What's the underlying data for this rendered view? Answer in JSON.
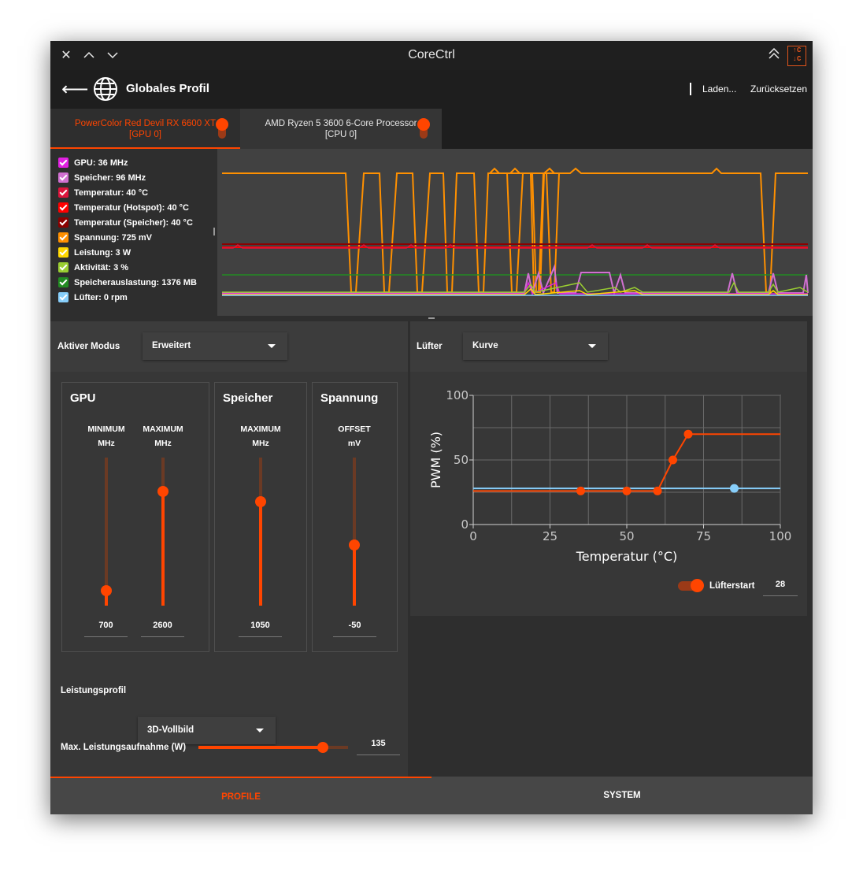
{
  "window": {
    "title": "CoreCtrl"
  },
  "header": {
    "profile_name": "Globales Profil",
    "load_label": "Laden...",
    "reset_label": "Zurücksetzen"
  },
  "device_tabs": [
    {
      "line1": "PowerColor Red Devil RX 6600 XT",
      "line2": "[GPU 0]",
      "active": true
    },
    {
      "line1": "AMD Ryzen 5 3600 6-Core Processor",
      "line2": "[CPU 0]",
      "active": false
    }
  ],
  "sensors": [
    {
      "label": "GPU: 36 MHz",
      "color": "#e020e0"
    },
    {
      "label": "Speicher: 96 MHz",
      "color": "#d070d0"
    },
    {
      "label": "Temperatur: 40 °C",
      "color": "#dc143c"
    },
    {
      "label": "Temperatur (Hotspot): 40 °C",
      "color": "#ff0000"
    },
    {
      "label": "Temperatur (Speicher): 40 °C",
      "color": "#8b0000"
    },
    {
      "label": "Spannung: 725 mV",
      "color": "#ff9000"
    },
    {
      "label": "Leistung: 3 W",
      "color": "#ffd700"
    },
    {
      "label": "Aktivität: 3 %",
      "color": "#9acd32"
    },
    {
      "label": "Speicherauslastung: 1376 MB",
      "color": "#228b22"
    },
    {
      "label": "Lüfter: 0 rpm",
      "color": "#87cefa"
    }
  ],
  "perf": {
    "mode_label": "Aktiver Modus",
    "mode_value": "Erweitert",
    "gpu_group": {
      "title": "GPU",
      "min_head": "MINIMUM",
      "max_head": "MAXIMUM",
      "unit": "MHz",
      "min_value": "700",
      "max_value": "2600",
      "min_level": 0.1,
      "max_level": 0.77
    },
    "mem_group": {
      "title": "Speicher",
      "max_head": "MAXIMUM",
      "unit": "MHz",
      "max_value": "1050",
      "max_level": 0.7
    },
    "volt_group": {
      "title": "Spannung",
      "head": "OFFSET",
      "unit": "mV",
      "value": "-50",
      "level": 0.41
    },
    "power_profile_label": "Leistungsprofil",
    "power_profile_value": "3D-Vollbild",
    "power_cap_label": "Max. Leistungsaufnahme (W)",
    "power_cap_value": "135",
    "power_cap_level": 0.83
  },
  "fan": {
    "label": "Lüfter",
    "mode_value": "Kurve",
    "fan_start_label": "Lüfterstart",
    "fan_start_value": "28"
  },
  "chart_data": {
    "type": "line",
    "xlabel": "Temperatur (°C)",
    "ylabel": "PWM (%)",
    "xlim": [
      0,
      100
    ],
    "ylim": [
      0,
      100
    ],
    "xticks": [
      "0",
      "25",
      "50",
      "75",
      "100"
    ],
    "yticks": [
      "0",
      "50",
      "100"
    ],
    "grid": true,
    "series": [
      {
        "color": "#ff4500",
        "points": [
          [
            0,
            26
          ],
          [
            35,
            26
          ],
          [
            50,
            26
          ],
          [
            60,
            26
          ],
          [
            65,
            50
          ],
          [
            70,
            70
          ],
          [
            100,
            70
          ]
        ],
        "markers": [
          [
            35,
            26
          ],
          [
            50,
            26
          ],
          [
            60,
            26
          ],
          [
            65,
            50
          ],
          [
            70,
            70
          ]
        ]
      },
      {
        "color": "#87cefa",
        "points": [
          [
            0,
            28
          ],
          [
            100,
            28
          ]
        ],
        "markers": [
          [
            85,
            28
          ]
        ]
      }
    ]
  },
  "bottom_tabs": {
    "profiles": "PROFILE",
    "system": "SYSTEM"
  }
}
